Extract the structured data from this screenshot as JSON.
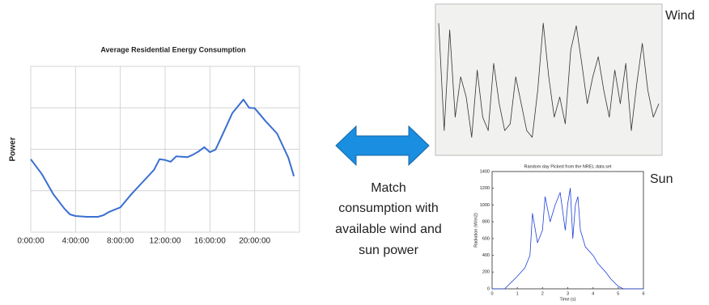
{
  "chart_data": [
    {
      "type": "line",
      "title": "Average Residential Energy Consumption",
      "y_label": "Power",
      "x": [
        0,
        1,
        2,
        3,
        3.5,
        4,
        5,
        6,
        6.5,
        7,
        8,
        9,
        10,
        11,
        11.5,
        12,
        12.5,
        13,
        14,
        14.5,
        15,
        15.5,
        16,
        16.5,
        17,
        18,
        19,
        19.5,
        20,
        21,
        22,
        23,
        23.5
      ],
      "series": [
        {
          "color": "#3a6fd0",
          "values": [
            1.76,
            1.4,
            0.92,
            0.57,
            0.43,
            0.39,
            0.37,
            0.37,
            0.41,
            0.49,
            0.6,
            0.92,
            1.21,
            1.5,
            1.76,
            1.74,
            1.7,
            1.83,
            1.81,
            1.87,
            1.95,
            2.05,
            1.93,
            1.99,
            2.28,
            2.87,
            3.2,
            3.0,
            2.99,
            2.67,
            2.38,
            1.8,
            1.35
          ]
        }
      ],
      "xlim": [
        0,
        24
      ],
      "xticks": [
        {
          "value": 0,
          "label": "0:00:00"
        },
        {
          "value": 4,
          "label": "4:00:00"
        },
        {
          "value": 8,
          "label": "8:00:00"
        },
        {
          "value": 12,
          "label": "12:00:00"
        },
        {
          "value": 16,
          "label": "16:00:00"
        },
        {
          "value": 20,
          "label": "20:00:00"
        }
      ],
      "ylim": [
        0,
        4
      ],
      "grid": true
    },
    {
      "type": "line",
      "x": [
        0,
        1,
        2,
        3,
        4,
        5,
        6,
        7,
        8,
        9,
        10,
        11,
        12,
        13,
        14,
        15,
        16,
        17,
        18,
        19,
        20,
        21,
        22,
        23,
        24,
        25,
        26,
        27,
        28,
        29,
        30,
        31,
        32,
        33,
        34,
        35,
        36,
        37,
        38,
        39,
        40
      ],
      "series": [
        {
          "color": "#333333",
          "values": [
            0.9,
            0.1,
            0.85,
            0.2,
            0.5,
            0.35,
            0.05,
            0.55,
            0.2,
            0.1,
            0.6,
            0.3,
            0.1,
            0.15,
            0.5,
            0.3,
            0.1,
            0.05,
            0.4,
            0.9,
            0.5,
            0.2,
            0.35,
            0.15,
            0.7,
            0.88,
            0.6,
            0.3,
            0.5,
            0.65,
            0.4,
            0.2,
            0.55,
            0.3,
            0.6,
            0.1,
            0.45,
            0.75,
            0.4,
            0.2,
            0.3
          ]
        }
      ],
      "xlim": [
        0,
        40
      ],
      "ylim": [
        0,
        1
      ]
    },
    {
      "type": "line",
      "title": "Random day Picked from the NREL data set",
      "x_label": "Time (s)",
      "y_label": "Radiation (W/m2)",
      "x": [
        0,
        0.5,
        1,
        1.3,
        1.5,
        1.6,
        1.8,
        2,
        2.1,
        2.3,
        2.5,
        2.7,
        2.9,
        3,
        3.1,
        3.2,
        3.3,
        3.4,
        3.5,
        3.7,
        4,
        4.2,
        4.5,
        4.7,
        5,
        5.2,
        6
      ],
      "series": [
        {
          "color": "#1f3fd8",
          "values": [
            0,
            0,
            150,
            250,
            400,
            900,
            550,
            700,
            1100,
            800,
            1000,
            1150,
            700,
            1020,
            1200,
            600,
            1000,
            1100,
            700,
            500,
            400,
            300,
            200,
            120,
            30,
            0,
            0
          ]
        }
      ],
      "xlim": [
        0,
        6
      ],
      "xticks": [
        0,
        1,
        2,
        3,
        4,
        5,
        6
      ],
      "ylim": [
        0,
        1400
      ],
      "yticks": [
        0,
        200,
        400,
        600,
        800,
        1000,
        1200,
        1400
      ]
    }
  ],
  "annotations": {
    "wind": "Wind",
    "sun": "Sun",
    "center": [
      "Match",
      "consumption with",
      "available wind and",
      "sun power"
    ]
  }
}
